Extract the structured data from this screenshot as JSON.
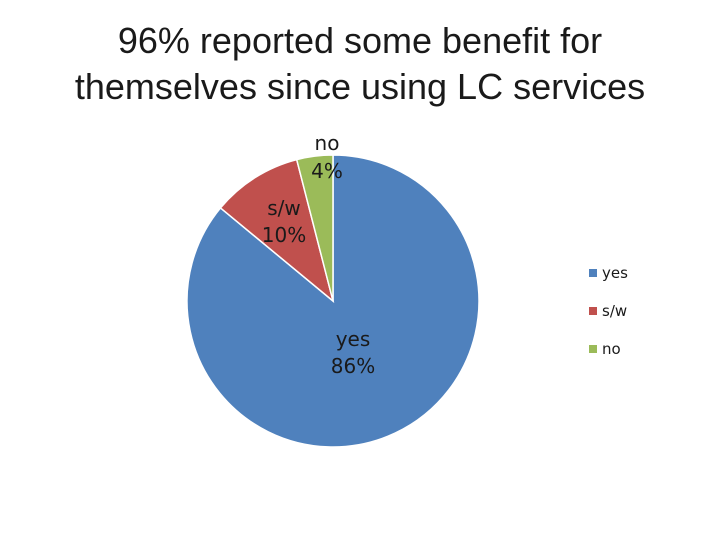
{
  "title": {
    "line1": "96% reported some benefit for",
    "line2": "themselves since using LC services"
  },
  "chart_data": {
    "type": "pie",
    "title": "96% reported some benefit for themselves since using LC services",
    "categories": [
      "yes",
      "s/w",
      "no"
    ],
    "values": [
      86,
      10,
      4
    ],
    "colors": [
      "#4f81bd",
      "#c0504d",
      "#9bbb59"
    ],
    "data_labels": [
      {
        "name": "yes",
        "percent": "86%"
      },
      {
        "name": "s/w",
        "percent": "10%"
      },
      {
        "name": "no",
        "percent": "4%"
      }
    ],
    "legend": {
      "position": "right",
      "entries": [
        "yes",
        "s/w",
        "no"
      ]
    }
  }
}
